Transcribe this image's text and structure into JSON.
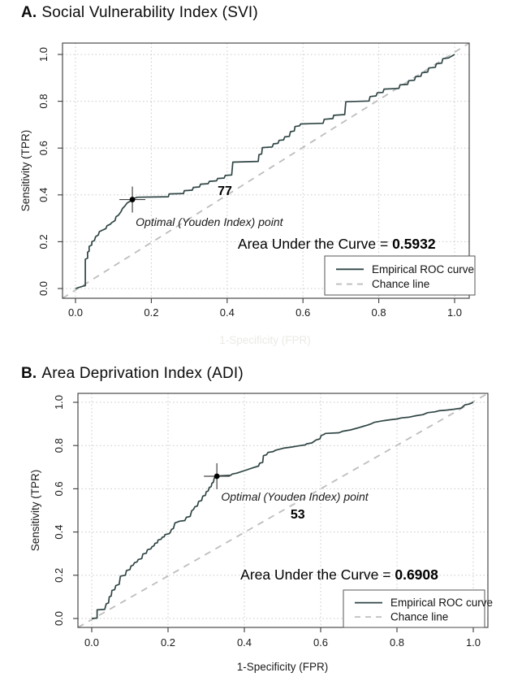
{
  "figure": {
    "description": "Two ROC curve panels comparing screening indices",
    "background": "#ffffff"
  },
  "chart_data": [
    {
      "type": "line",
      "panel_label": "A.",
      "title": "Social Vulnerability Index (SVI)",
      "xlabel": "1-Specificity (FPR)",
      "xlabel_style": "faded",
      "ylabel": "Sensitivity (TPR)",
      "xlim": [
        0,
        1
      ],
      "ylim": [
        0,
        1
      ],
      "grid": true,
      "xticks": [
        0.0,
        0.2,
        0.4,
        0.6,
        0.8,
        1.0
      ],
      "yticks": [
        0.0,
        0.2,
        0.4,
        0.6,
        0.8,
        1.0
      ],
      "xtick_labels": [
        "0.0",
        "0.2",
        "0.4",
        "0.6",
        "0.8",
        "1.0"
      ],
      "ytick_labels": [
        "0.0",
        "0.2",
        "0.4",
        "0.6",
        "0.8",
        "1.0"
      ],
      "auc_label_prefix": "Area Under the Curve = ",
      "auc_value": "0.5932",
      "auc_label_xy": [
        0.689,
        0.17
      ],
      "optimal_point": {
        "x": 0.15,
        "y": 0.38,
        "threshold_label": "77",
        "threshold_label_xy": [
          0.394,
          0.399
        ],
        "caption": "Optimal (Youden Index) point",
        "caption_xy": [
          0.353,
          0.267
        ]
      },
      "legend": {
        "position": "bottom-right",
        "entries": [
          {
            "label": "Empirical ROC curve",
            "style": "solid"
          },
          {
            "label": "Chance line",
            "style": "dashed"
          }
        ]
      },
      "colors": {
        "curve": "#2f4544",
        "chance": "#bdbdbd",
        "grid": "#c8c8c8",
        "frame": "#3a3a3a",
        "marker": "#000000"
      },
      "series": [
        {
          "name": "Empirical ROC curve",
          "points": [
            [
              0.0,
              0.0
            ],
            [
              0.02,
              0.01
            ],
            [
              0.026,
              0.012
            ],
            [
              0.026,
              0.125
            ],
            [
              0.032,
              0.13
            ],
            [
              0.032,
              0.155
            ],
            [
              0.036,
              0.16
            ],
            [
              0.036,
              0.18
            ],
            [
              0.043,
              0.186
            ],
            [
              0.043,
              0.2
            ],
            [
              0.05,
              0.205
            ],
            [
              0.053,
              0.222
            ],
            [
              0.06,
              0.228
            ],
            [
              0.063,
              0.243
            ],
            [
              0.072,
              0.25
            ],
            [
              0.08,
              0.256
            ],
            [
              0.083,
              0.268
            ],
            [
              0.092,
              0.275
            ],
            [
              0.096,
              0.282
            ],
            [
              0.104,
              0.29
            ],
            [
              0.107,
              0.307
            ],
            [
              0.113,
              0.313
            ],
            [
              0.12,
              0.328
            ],
            [
              0.124,
              0.342
            ],
            [
              0.13,
              0.352
            ],
            [
              0.136,
              0.365
            ],
            [
              0.143,
              0.372
            ],
            [
              0.15,
              0.38
            ],
            [
              0.156,
              0.386
            ],
            [
              0.163,
              0.39
            ],
            [
              0.245,
              0.392
            ],
            [
              0.247,
              0.404
            ],
            [
              0.285,
              0.406
            ],
            [
              0.287,
              0.418
            ],
            [
              0.308,
              0.42
            ],
            [
              0.311,
              0.432
            ],
            [
              0.327,
              0.434
            ],
            [
              0.33,
              0.446
            ],
            [
              0.35,
              0.448
            ],
            [
              0.353,
              0.458
            ],
            [
              0.372,
              0.46
            ],
            [
              0.375,
              0.47
            ],
            [
              0.392,
              0.472
            ],
            [
              0.395,
              0.483
            ],
            [
              0.412,
              0.485
            ],
            [
              0.415,
              0.54
            ],
            [
              0.482,
              0.543
            ],
            [
              0.484,
              0.572
            ],
            [
              0.491,
              0.575
            ],
            [
              0.493,
              0.602
            ],
            [
              0.519,
              0.605
            ],
            [
              0.522,
              0.618
            ],
            [
              0.534,
              0.62
            ],
            [
              0.537,
              0.633
            ],
            [
              0.549,
              0.635
            ],
            [
              0.552,
              0.648
            ],
            [
              0.564,
              0.65
            ],
            [
              0.567,
              0.67
            ],
            [
              0.577,
              0.673
            ],
            [
              0.579,
              0.692
            ],
            [
              0.591,
              0.695
            ],
            [
              0.594,
              0.703
            ],
            [
              0.653,
              0.706
            ],
            [
              0.656,
              0.723
            ],
            [
              0.679,
              0.726
            ],
            [
              0.681,
              0.74
            ],
            [
              0.71,
              0.743
            ],
            [
              0.713,
              0.798
            ],
            [
              0.774,
              0.801
            ],
            [
              0.777,
              0.82
            ],
            [
              0.793,
              0.823
            ],
            [
              0.796,
              0.836
            ],
            [
              0.811,
              0.838
            ],
            [
              0.814,
              0.852
            ],
            [
              0.853,
              0.855
            ],
            [
              0.856,
              0.87
            ],
            [
              0.876,
              0.872
            ],
            [
              0.879,
              0.888
            ],
            [
              0.894,
              0.89
            ],
            [
              0.897,
              0.905
            ],
            [
              0.911,
              0.907
            ],
            [
              0.914,
              0.922
            ],
            [
              0.929,
              0.925
            ],
            [
              0.932,
              0.942
            ],
            [
              0.949,
              0.945
            ],
            [
              0.952,
              0.96
            ],
            [
              0.966,
              0.963
            ],
            [
              0.969,
              0.982
            ],
            [
              0.984,
              0.985
            ],
            [
              1.0,
              1.0
            ]
          ]
        },
        {
          "name": "Chance line",
          "points": [
            [
              0,
              0
            ],
            [
              1,
              1
            ]
          ]
        }
      ]
    },
    {
      "type": "line",
      "panel_label": "B.",
      "title": "Area Deprivation Index (ADI)",
      "xlabel": "1-Specificity (FPR)",
      "xlabel_style": "normal",
      "ylabel": "Sensitivity (TPR)",
      "xlim": [
        0,
        1
      ],
      "ylim": [
        0,
        1
      ],
      "grid": true,
      "xticks": [
        0.0,
        0.2,
        0.4,
        0.6,
        0.8,
        1.0
      ],
      "yticks": [
        0.0,
        0.2,
        0.4,
        0.6,
        0.8,
        1.0
      ],
      "xtick_labels": [
        "0.0",
        "0.2",
        "0.4",
        "0.6",
        "0.8",
        "1.0"
      ],
      "ytick_labels": [
        "0.0",
        "0.2",
        "0.4",
        "0.6",
        "0.8",
        "1.0"
      ],
      "auc_label_prefix": "Area Under the Curve = ",
      "auc_value": "0.6908",
      "auc_label_xy": [
        0.649,
        0.18
      ],
      "optimal_point": {
        "x": 0.328,
        "y": 0.658,
        "threshold_label": "53",
        "threshold_label_xy": [
          0.54,
          0.462
        ],
        "caption": "Optimal (Youden Index) point",
        "caption_xy": [
          0.532,
          0.545
        ]
      },
      "legend": {
        "position": "bottom-right",
        "entries": [
          {
            "label": "Empirical ROC curve",
            "style": "solid"
          },
          {
            "label": "Chance line",
            "style": "dashed"
          }
        ]
      },
      "colors": {
        "curve": "#2f4544",
        "chance": "#bdbdbd",
        "grid": "#c8c8c8",
        "frame": "#3a3a3a",
        "marker": "#000000"
      },
      "series": [
        {
          "name": "Empirical ROC curve",
          "points": [
            [
              0.0,
              0.0
            ],
            [
              0.014,
              0.002
            ],
            [
              0.014,
              0.04
            ],
            [
              0.034,
              0.042
            ],
            [
              0.038,
              0.068
            ],
            [
              0.044,
              0.072
            ],
            [
              0.046,
              0.1
            ],
            [
              0.051,
              0.104
            ],
            [
              0.053,
              0.13
            ],
            [
              0.06,
              0.133
            ],
            [
              0.063,
              0.152
            ],
            [
              0.072,
              0.158
            ],
            [
              0.075,
              0.196
            ],
            [
              0.088,
              0.2
            ],
            [
              0.091,
              0.222
            ],
            [
              0.1,
              0.226
            ],
            [
              0.103,
              0.243
            ],
            [
              0.109,
              0.247
            ],
            [
              0.112,
              0.258
            ],
            [
              0.119,
              0.262
            ],
            [
              0.122,
              0.273
            ],
            [
              0.131,
              0.277
            ],
            [
              0.134,
              0.298
            ],
            [
              0.143,
              0.302
            ],
            [
              0.146,
              0.318
            ],
            [
              0.155,
              0.322
            ],
            [
              0.158,
              0.332
            ],
            [
              0.163,
              0.336
            ],
            [
              0.166,
              0.348
            ],
            [
              0.172,
              0.35
            ],
            [
              0.174,
              0.363
            ],
            [
              0.182,
              0.367
            ],
            [
              0.185,
              0.376
            ],
            [
              0.19,
              0.378
            ],
            [
              0.192,
              0.388
            ],
            [
              0.203,
              0.392
            ],
            [
              0.206,
              0.398
            ],
            [
              0.209,
              0.412
            ],
            [
              0.214,
              0.416
            ],
            [
              0.218,
              0.442
            ],
            [
              0.224,
              0.446
            ],
            [
              0.23,
              0.45
            ],
            [
              0.244,
              0.453
            ],
            [
              0.248,
              0.468
            ],
            [
              0.258,
              0.472
            ],
            [
              0.262,
              0.498
            ],
            [
              0.267,
              0.505
            ],
            [
              0.27,
              0.516
            ],
            [
              0.277,
              0.521
            ],
            [
              0.28,
              0.541
            ],
            [
              0.288,
              0.546
            ],
            [
              0.291,
              0.566
            ],
            [
              0.298,
              0.57
            ],
            [
              0.3,
              0.586
            ],
            [
              0.305,
              0.59
            ],
            [
              0.308,
              0.606
            ],
            [
              0.313,
              0.61
            ],
            [
              0.315,
              0.626
            ],
            [
              0.319,
              0.63
            ],
            [
              0.321,
              0.65
            ],
            [
              0.328,
              0.658
            ],
            [
              0.34,
              0.66
            ],
            [
              0.364,
              0.662
            ],
            [
              0.368,
              0.668
            ],
            [
              0.38,
              0.672
            ],
            [
              0.404,
              0.686
            ],
            [
              0.424,
              0.698
            ],
            [
              0.437,
              0.705
            ],
            [
              0.44,
              0.718
            ],
            [
              0.448,
              0.722
            ],
            [
              0.45,
              0.753
            ],
            [
              0.458,
              0.757
            ],
            [
              0.462,
              0.768
            ],
            [
              0.476,
              0.772
            ],
            [
              0.481,
              0.778
            ],
            [
              0.503,
              0.788
            ],
            [
              0.523,
              0.793
            ],
            [
              0.541,
              0.798
            ],
            [
              0.56,
              0.803
            ],
            [
              0.563,
              0.808
            ],
            [
              0.577,
              0.812
            ],
            [
              0.588,
              0.826
            ],
            [
              0.598,
              0.831
            ],
            [
              0.601,
              0.846
            ],
            [
              0.608,
              0.851
            ],
            [
              0.613,
              0.856
            ],
            [
              0.648,
              0.859
            ],
            [
              0.658,
              0.866
            ],
            [
              0.678,
              0.872
            ],
            [
              0.69,
              0.878
            ],
            [
              0.702,
              0.884
            ],
            [
              0.712,
              0.889
            ],
            [
              0.722,
              0.894
            ],
            [
              0.732,
              0.9
            ],
            [
              0.74,
              0.907
            ],
            [
              0.752,
              0.911
            ],
            [
              0.765,
              0.915
            ],
            [
              0.782,
              0.919
            ],
            [
              0.8,
              0.923
            ],
            [
              0.812,
              0.928
            ],
            [
              0.83,
              0.931
            ],
            [
              0.85,
              0.938
            ],
            [
              0.868,
              0.943
            ],
            [
              0.88,
              0.952
            ],
            [
              0.9,
              0.956
            ],
            [
              0.91,
              0.961
            ],
            [
              0.93,
              0.964
            ],
            [
              0.95,
              0.968
            ],
            [
              0.968,
              0.973
            ],
            [
              0.978,
              0.988
            ],
            [
              0.99,
              0.992
            ],
            [
              1.0,
              1.0
            ]
          ]
        },
        {
          "name": "Chance line",
          "points": [
            [
              0,
              0
            ],
            [
              1,
              1
            ]
          ]
        }
      ]
    }
  ]
}
